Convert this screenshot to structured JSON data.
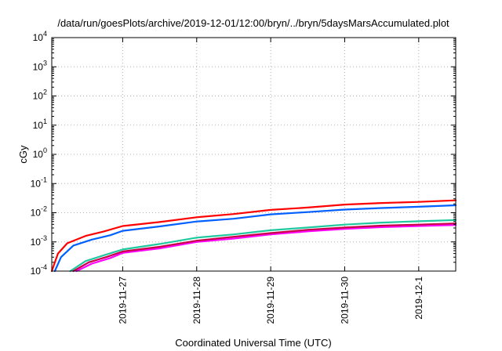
{
  "chart_data": {
    "type": "line",
    "title": "/data/run/goesPlots/archive/2019-12-01/12:00/bryn/../bryn/5daysMarsAccumulated.plot",
    "xlabel": "Coordinated Universal Time (UTC)",
    "ylabel": "cGy",
    "y_scale": "log",
    "ylim": [
      0.0001,
      10000
    ],
    "y_ticks": [
      {
        "base": "10",
        "exp": "4",
        "value": 10000
      },
      {
        "base": "10",
        "exp": "3",
        "value": 1000
      },
      {
        "base": "10",
        "exp": "2",
        "value": 100
      },
      {
        "base": "10",
        "exp": "1",
        "value": 10
      },
      {
        "base": "10",
        "exp": "0",
        "value": 1
      },
      {
        "base": "10",
        "exp": "-1",
        "value": 0.1
      },
      {
        "base": "10",
        "exp": "-2",
        "value": 0.01
      },
      {
        "base": "10",
        "exp": "-3",
        "value": 0.001
      },
      {
        "base": "10",
        "exp": "-4",
        "value": 0.0001
      }
    ],
    "xlim": [
      "2019-11-26T01:00",
      "2019-12-01T12:00"
    ],
    "x_ticks": [
      {
        "label": "2019-11-27",
        "value": "2019-11-27T00:00"
      },
      {
        "label": "2019-11-28",
        "value": "2019-11-28T00:00"
      },
      {
        "label": "2019-11-29",
        "value": "2019-11-29T00:00"
      },
      {
        "label": "2019-11-30",
        "value": "2019-11-30T00:00"
      },
      {
        "label": "2019-12-1",
        "value": "2019-12-01T00:00"
      }
    ],
    "grid": true,
    "legend": "none",
    "series": [
      {
        "color": "#ff0000",
        "points": [
          [
            "2019-11-26T01:00",
            0.0001
          ],
          [
            "2019-11-26T03:00",
            0.0004
          ],
          [
            "2019-11-26T06:00",
            0.0009
          ],
          [
            "2019-11-26T12:00",
            0.0016
          ],
          [
            "2019-11-26T18:00",
            0.0023
          ],
          [
            "2019-11-27T00:00",
            0.0035
          ],
          [
            "2019-11-27T12:00",
            0.0048
          ],
          [
            "2019-11-28T00:00",
            0.007
          ],
          [
            "2019-11-28T12:00",
            0.009
          ],
          [
            "2019-11-29T00:00",
            0.0125
          ],
          [
            "2019-11-29T12:00",
            0.015
          ],
          [
            "2019-11-30T00:00",
            0.019
          ],
          [
            "2019-11-30T12:00",
            0.0215
          ],
          [
            "2019-12-01T00:00",
            0.0235
          ],
          [
            "2019-12-01T12:00",
            0.0265
          ]
        ]
      },
      {
        "color": "#0060ff",
        "points": [
          [
            "2019-11-26T02:00",
            0.0001
          ],
          [
            "2019-11-26T04:00",
            0.0003
          ],
          [
            "2019-11-26T08:00",
            0.00075
          ],
          [
            "2019-11-26T14:00",
            0.0012
          ],
          [
            "2019-11-26T20:00",
            0.0017
          ],
          [
            "2019-11-27T00:00",
            0.0024
          ],
          [
            "2019-11-27T12:00",
            0.0034
          ],
          [
            "2019-11-28T00:00",
            0.005
          ],
          [
            "2019-11-28T12:00",
            0.0062
          ],
          [
            "2019-11-29T00:00",
            0.0088
          ],
          [
            "2019-11-29T12:00",
            0.0105
          ],
          [
            "2019-11-30T00:00",
            0.0128
          ],
          [
            "2019-11-30T12:00",
            0.0145
          ],
          [
            "2019-12-01T00:00",
            0.016
          ],
          [
            "2019-12-01T12:00",
            0.018
          ]
        ]
      },
      {
        "color": "#20c8a0",
        "points": [
          [
            "2019-11-26T07:00",
            0.0001
          ],
          [
            "2019-11-26T12:00",
            0.00022
          ],
          [
            "2019-11-26T18:00",
            0.00035
          ],
          [
            "2019-11-27T00:00",
            0.00055
          ],
          [
            "2019-11-27T12:00",
            0.00085
          ],
          [
            "2019-11-28T00:00",
            0.0014
          ],
          [
            "2019-11-28T12:00",
            0.0018
          ],
          [
            "2019-11-29T00:00",
            0.0025
          ],
          [
            "2019-11-29T12:00",
            0.0031
          ],
          [
            "2019-11-30T00:00",
            0.0039
          ],
          [
            "2019-11-30T12:00",
            0.0046
          ],
          [
            "2019-12-01T00:00",
            0.0051
          ],
          [
            "2019-12-01T12:00",
            0.0056
          ]
        ]
      },
      {
        "color": "#ff00ff",
        "points": [
          [
            "2019-11-26T09:00",
            0.0001
          ],
          [
            "2019-11-26T14:00",
            0.00018
          ],
          [
            "2019-11-26T20:00",
            0.00028
          ],
          [
            "2019-11-27T00:00",
            0.00042
          ],
          [
            "2019-11-27T12:00",
            0.0006
          ],
          [
            "2019-11-28T00:00",
            0.001
          ],
          [
            "2019-11-28T12:00",
            0.0013
          ],
          [
            "2019-11-29T00:00",
            0.0018
          ],
          [
            "2019-11-29T12:00",
            0.0023
          ],
          [
            "2019-11-30T00:00",
            0.0028
          ],
          [
            "2019-11-30T12:00",
            0.0032
          ],
          [
            "2019-12-01T00:00",
            0.0035
          ],
          [
            "2019-12-01T12:00",
            0.0038
          ]
        ]
      },
      {
        "color": "#c80046",
        "points": [
          [
            "2019-11-26T08:00",
            0.0001
          ],
          [
            "2019-11-26T13:00",
            0.0002
          ],
          [
            "2019-11-26T19:00",
            0.00031
          ],
          [
            "2019-11-27T00:00",
            0.00047
          ],
          [
            "2019-11-27T12:00",
            0.00068
          ],
          [
            "2019-11-28T00:00",
            0.0011
          ],
          [
            "2019-11-28T12:00",
            0.0015
          ],
          [
            "2019-11-29T00:00",
            0.002
          ],
          [
            "2019-11-29T12:00",
            0.0026
          ],
          [
            "2019-11-30T00:00",
            0.0031
          ],
          [
            "2019-11-30T12:00",
            0.0036
          ],
          [
            "2019-12-01T00:00",
            0.0039
          ],
          [
            "2019-12-01T12:00",
            0.0043
          ]
        ]
      }
    ]
  }
}
